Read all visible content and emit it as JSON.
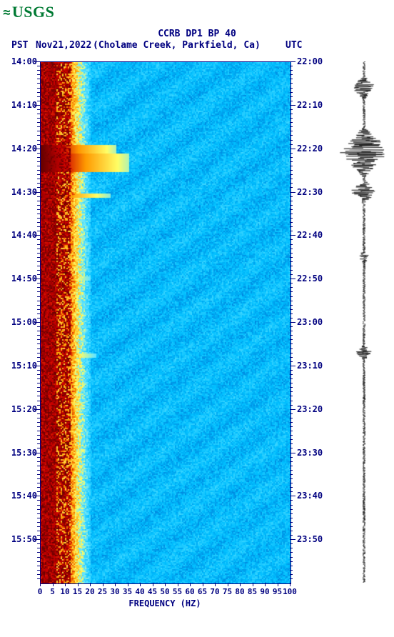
{
  "logo": {
    "text": "USGS",
    "wave_glyph": "≈",
    "color": "#007a33"
  },
  "title": "CCRB DP1 BP 40",
  "subtitle": {
    "pst": "PST",
    "date": "Nov21,2022",
    "location": "(Cholame Creek, Parkfield, Ca)",
    "utc": "UTC"
  },
  "colors": {
    "text": "#000080",
    "background": "#ffffff",
    "waveform": "#000000"
  },
  "spectrogram": {
    "type": "heatmap",
    "xlim": [
      0,
      100
    ],
    "ylim_pst": [
      "14:00",
      "16:00"
    ],
    "ylim_utc": [
      "22:00",
      "24:00"
    ],
    "duration_min": 120,
    "freq_max": 100,
    "colormap": {
      "stops": [
        {
          "v": 0.0,
          "c": "#003366"
        },
        {
          "v": 0.15,
          "c": "#0066cc"
        },
        {
          "v": 0.35,
          "c": "#00bfff"
        },
        {
          "v": 0.55,
          "c": "#66e6ff"
        },
        {
          "v": 0.65,
          "c": "#ffff66"
        },
        {
          "v": 0.8,
          "c": "#ff9900"
        },
        {
          "v": 0.9,
          "c": "#cc0000"
        },
        {
          "v": 1.0,
          "c": "#660000"
        }
      ]
    },
    "events": [
      {
        "t_min": 19,
        "width_min": 2,
        "freq_extent": 30,
        "intensity": 1.0
      },
      {
        "t_min": 21,
        "width_min": 4,
        "freq_extent": 35,
        "intensity": 1.0
      },
      {
        "t_min": 30,
        "width_min": 1,
        "freq_extent": 28,
        "intensity": 0.95
      },
      {
        "t_min": 49,
        "width_min": 1,
        "freq_extent": 20,
        "intensity": 0.9
      },
      {
        "t_min": 67,
        "width_min": 1,
        "freq_extent": 22,
        "intensity": 0.9
      }
    ],
    "low_freq_band": {
      "freq_max": 12,
      "intensity": 0.95
    },
    "transition_band": {
      "freq_min": 12,
      "freq_max": 20
    }
  },
  "waveform_trace": {
    "color": "#000000",
    "baseline_amp": 2,
    "events": [
      {
        "t_min": 6,
        "amp": 18,
        "dur": 3
      },
      {
        "t_min": 19,
        "amp": 28,
        "dur": 4
      },
      {
        "t_min": 21,
        "amp": 35,
        "dur": 6
      },
      {
        "t_min": 30,
        "amp": 20,
        "dur": 3
      },
      {
        "t_min": 45,
        "amp": 8,
        "dur": 2
      },
      {
        "t_min": 67,
        "amp": 12,
        "dur": 2
      }
    ]
  },
  "y_left_ticks": [
    "14:00",
    "14:10",
    "14:20",
    "14:30",
    "14:40",
    "14:50",
    "15:00",
    "15:10",
    "15:20",
    "15:30",
    "15:40",
    "15:50"
  ],
  "y_right_ticks": [
    "22:00",
    "22:10",
    "22:20",
    "22:30",
    "22:40",
    "22:50",
    "23:00",
    "23:10",
    "23:20",
    "23:30",
    "23:40",
    "23:50"
  ],
  "x_ticks": [
    0,
    5,
    10,
    15,
    20,
    25,
    30,
    35,
    40,
    45,
    50,
    55,
    60,
    65,
    70,
    75,
    80,
    85,
    90,
    95,
    100
  ],
  "x_label": "FREQUENCY (HZ)"
}
